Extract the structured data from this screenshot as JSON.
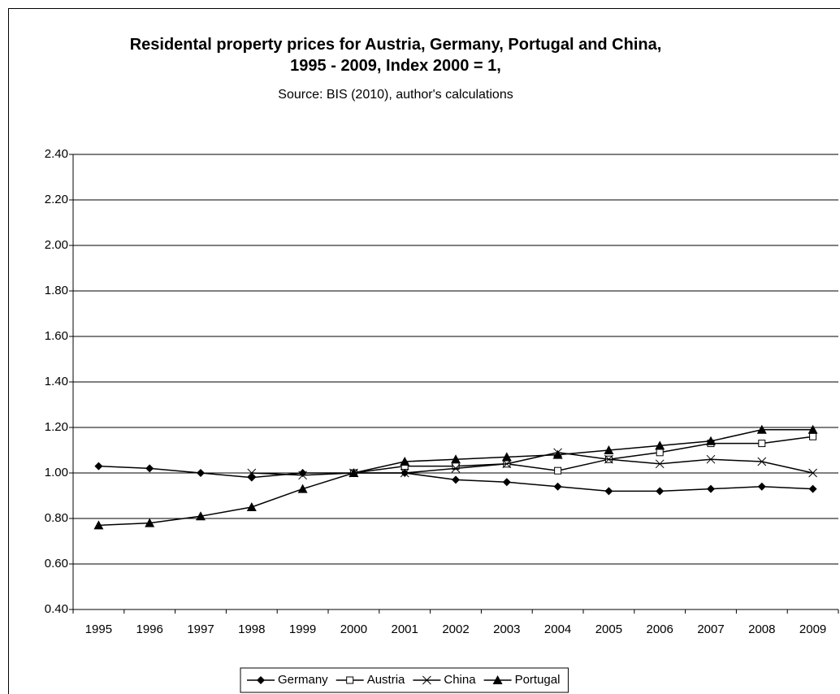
{
  "chart_data": {
    "type": "line",
    "title": "Residental property prices for Austria, Germany, Portugal and China, 1995 - 2009, Index 2000 = 1,",
    "subtitle": "Source: BIS (2010), author's calculations",
    "categories": [
      "1995",
      "1996",
      "1997",
      "1998",
      "1999",
      "2000",
      "2001",
      "2002",
      "2003",
      "2004",
      "2005",
      "2006",
      "2007",
      "2008",
      "2009"
    ],
    "series": [
      {
        "name": "Germany",
        "color": "#000000",
        "marker": "diamond",
        "values": [
          1.03,
          1.02,
          1.0,
          0.98,
          1.0,
          1.0,
          1.0,
          0.97,
          0.96,
          0.94,
          0.92,
          0.92,
          0.93,
          0.94,
          0.93
        ]
      },
      {
        "name": "Austria",
        "color": "#000000",
        "marker": "square",
        "values": [
          null,
          null,
          null,
          null,
          null,
          1.0,
          1.03,
          1.03,
          1.04,
          1.01,
          1.06,
          1.09,
          1.13,
          1.13,
          1.16
        ]
      },
      {
        "name": "China",
        "color": "#000000",
        "marker": "x",
        "values": [
          null,
          null,
          null,
          1.0,
          0.99,
          1.0,
          1.0,
          1.02,
          1.04,
          1.09,
          1.06,
          1.04,
          1.06,
          1.05,
          1.0
        ]
      },
      {
        "name": "Portugal",
        "color": "#000000",
        "marker": "triangle",
        "values": [
          0.77,
          0.78,
          0.81,
          0.85,
          0.93,
          1.0,
          1.05,
          1.06,
          1.07,
          1.08,
          1.1,
          1.12,
          1.14,
          1.19,
          1.19
        ]
      }
    ],
    "ylim": [
      0.4,
      2.4
    ],
    "yticks": [
      {
        "value": 0.4,
        "label": "0.40"
      },
      {
        "value": 0.6,
        "label": "0.60"
      },
      {
        "value": 0.8,
        "label": "0.80"
      },
      {
        "value": 1.0,
        "label": "1.00"
      },
      {
        "value": 1.2,
        "label": "1.20"
      },
      {
        "value": 1.4,
        "label": "1.40"
      },
      {
        "value": 1.6,
        "label": "1.60"
      },
      {
        "value": 1.8,
        "label": "1.80"
      },
      {
        "value": 2.0,
        "label": "2.00"
      },
      {
        "value": 2.2,
        "label": "2.20"
      },
      {
        "value": 2.4,
        "label": "2.40"
      }
    ],
    "grid": true,
    "legend": "bottom"
  }
}
